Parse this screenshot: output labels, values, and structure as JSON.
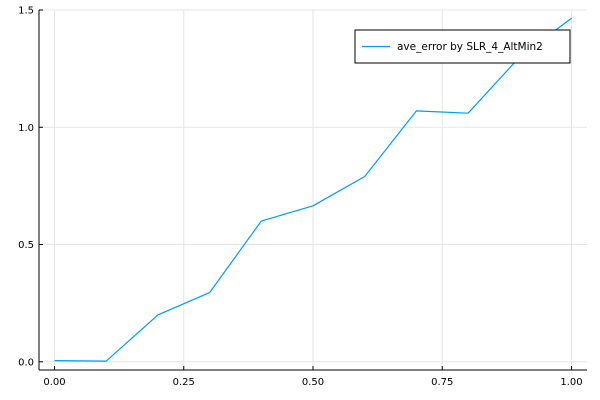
{
  "chart_data": {
    "type": "line",
    "title": "",
    "xlabel": "",
    "ylabel": "",
    "xlim": [
      -0.03,
      1.03
    ],
    "ylim": [
      -0.035,
      1.5
    ],
    "xticks": [
      0.0,
      0.25,
      0.5,
      0.75,
      1.0
    ],
    "xtick_labels": [
      "0.00",
      "0.25",
      "0.50",
      "0.75",
      "1.00"
    ],
    "yticks": [
      0.0,
      0.5,
      1.0,
      1.5
    ],
    "ytick_labels": [
      "0.0",
      "0.5",
      "1.0",
      "1.5"
    ],
    "grid": true,
    "legend_position": "top-right",
    "series": [
      {
        "name": "ave_error by SLR_4_AltMin2",
        "color": "#009AFA",
        "x": [
          0.0,
          0.1,
          0.2,
          0.3,
          0.4,
          0.5,
          0.6,
          0.7,
          0.8,
          0.9,
          1.0
        ],
        "y": [
          0.005,
          0.003,
          0.2,
          0.295,
          0.6,
          0.665,
          0.79,
          1.07,
          1.06,
          1.3,
          1.465
        ]
      }
    ]
  }
}
